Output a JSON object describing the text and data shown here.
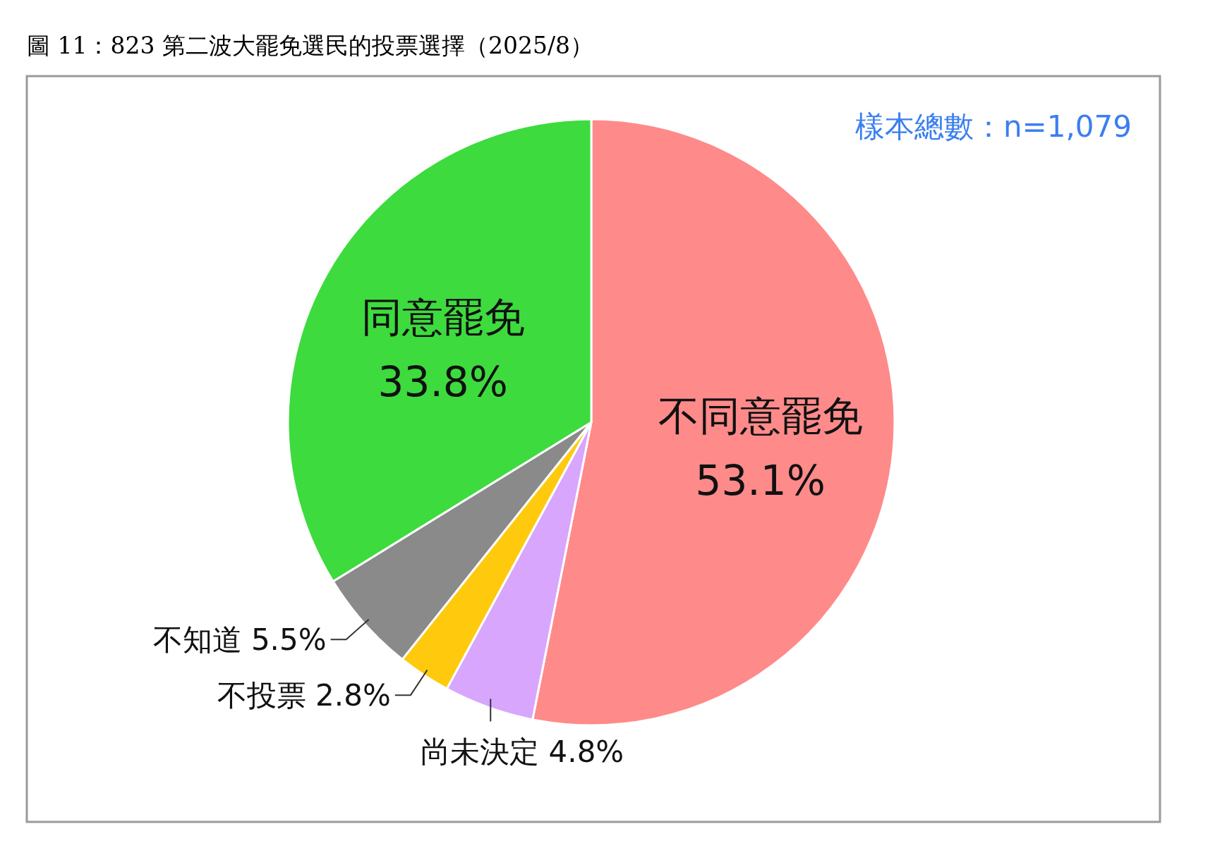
{
  "chart_data": {
    "type": "pie",
    "title": "圖 11：823 第二波大罷免選民的投票選擇（2025/8）",
    "categories": [
      "不同意罷免",
      "尚未決定",
      "不投票",
      "不知道",
      "同意罷免"
    ],
    "values": [
      53.1,
      4.8,
      2.8,
      5.5,
      33.8
    ],
    "value_labels": [
      "53.1%",
      "4.8%",
      "2.8%",
      "5.5%",
      "33.8%"
    ],
    "colors": [
      "#ff8a8a",
      "#d8a6fc",
      "#ffc90e",
      "#8a8a8a",
      "#3ddb3d"
    ],
    "annotations": [
      "樣本總數：n=1,079"
    ]
  }
}
